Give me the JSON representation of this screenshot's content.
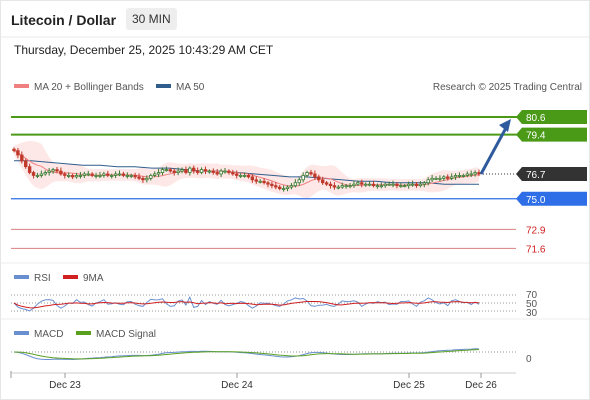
{
  "header": {
    "title": "Litecoin / Dollar",
    "timeframe": "30 MIN",
    "datetime": "Thursday, December 25, 2025 10:43:29 AM CET",
    "research": "Research © 2025 Trading Central"
  },
  "colors": {
    "ma20": "#f08080",
    "ma50": "#2f5d8c",
    "bands": "#fde3e3",
    "resistance": "#4a9a18",
    "support": "#2e6ee6",
    "weak": "#d98080",
    "arrow": "#2f5b9e",
    "up": "#3a7a30",
    "down": "#c0392b",
    "rsi": "#6a8fd0",
    "rsi_ma": "#d02020",
    "macd": "#6a8fd0",
    "macd_signal": "#5aa020"
  },
  "chart_data": [
    {
      "type": "candlestick",
      "title": "Litecoin / Dollar",
      "x_ticks": [
        "Dec 23",
        "Dec 24",
        "Dec 25",
        "Dec 26"
      ],
      "ylim": [
        70.6,
        81.7
      ],
      "legend": [
        "MA 20 + Bollinger Bands",
        "MA 50"
      ],
      "levels": [
        {
          "value": 80.6,
          "label": "80.6",
          "kind": "resistance"
        },
        {
          "value": 79.4,
          "label": "79.4",
          "kind": "resistance"
        },
        {
          "value": 76.7,
          "label": "76.7",
          "kind": "last"
        },
        {
          "value": 75.0,
          "label": "75.0",
          "kind": "support"
        },
        {
          "value": 72.9,
          "label": "72.9",
          "kind": "weak"
        },
        {
          "value": 71.6,
          "label": "71.6",
          "kind": "weak"
        }
      ],
      "close_series": [
        78.3,
        78.0,
        77.6,
        77.2,
        76.8,
        76.6,
        76.6,
        76.7,
        76.8,
        76.9,
        77.0,
        76.9,
        76.7,
        76.6,
        76.6,
        76.5,
        76.6,
        76.6,
        76.7,
        76.7,
        76.6,
        76.6,
        76.6,
        76.7,
        76.6,
        76.6,
        76.7,
        76.7,
        76.6,
        76.6,
        76.6,
        76.5,
        76.4,
        76.3,
        76.4,
        76.6,
        76.7,
        76.8,
        77.0,
        77.0,
        76.9,
        76.8,
        76.9,
        77.0,
        76.8,
        77.1,
        76.9,
        76.8,
        77.0,
        76.9,
        76.9,
        76.8,
        76.7,
        76.9,
        76.9,
        76.8,
        76.7,
        76.6,
        76.6,
        76.6,
        76.5,
        76.3,
        76.2,
        76.2,
        76.1,
        76.0,
        75.9,
        75.8,
        75.7,
        75.7,
        75.8,
        75.9,
        76.1,
        76.3,
        76.6,
        76.8,
        76.7,
        76.5,
        76.3,
        76.1,
        76.0,
        75.9,
        75.8,
        75.8,
        75.9,
        75.9,
        75.9,
        76.0,
        76.1,
        76.0,
        76.0,
        76.0,
        75.9,
        75.9,
        75.9,
        76.0,
        76.0,
        76.0,
        75.9,
        75.9,
        75.9,
        76.0,
        76.0,
        75.9,
        76.0,
        76.1,
        76.3,
        76.4,
        76.4,
        76.4,
        76.5,
        76.4,
        76.5,
        76.6,
        76.6,
        76.6,
        76.7,
        76.7,
        76.8,
        76.7
      ],
      "ma50_series": [
        77.6,
        77.6,
        77.5,
        77.4,
        77.3,
        77.3,
        77.2,
        77.2,
        77.1,
        77.1,
        77.0,
        76.9,
        76.9,
        76.8,
        76.7,
        76.6,
        76.5,
        76.5,
        76.4,
        76.3,
        76.2,
        76.2,
        76.1,
        76.1,
        76.1,
        76.0,
        76.0,
        76.0
      ],
      "arrow_target": 80.6
    },
    {
      "type": "line",
      "legend": [
        "RSI",
        "9MA"
      ],
      "y_ticks": [
        "70",
        "50",
        "30"
      ],
      "ylim": [
        20,
        80
      ]
    },
    {
      "type": "line",
      "legend": [
        "MACD",
        "MACD Signal"
      ],
      "y_ticks": [
        "0"
      ]
    }
  ]
}
